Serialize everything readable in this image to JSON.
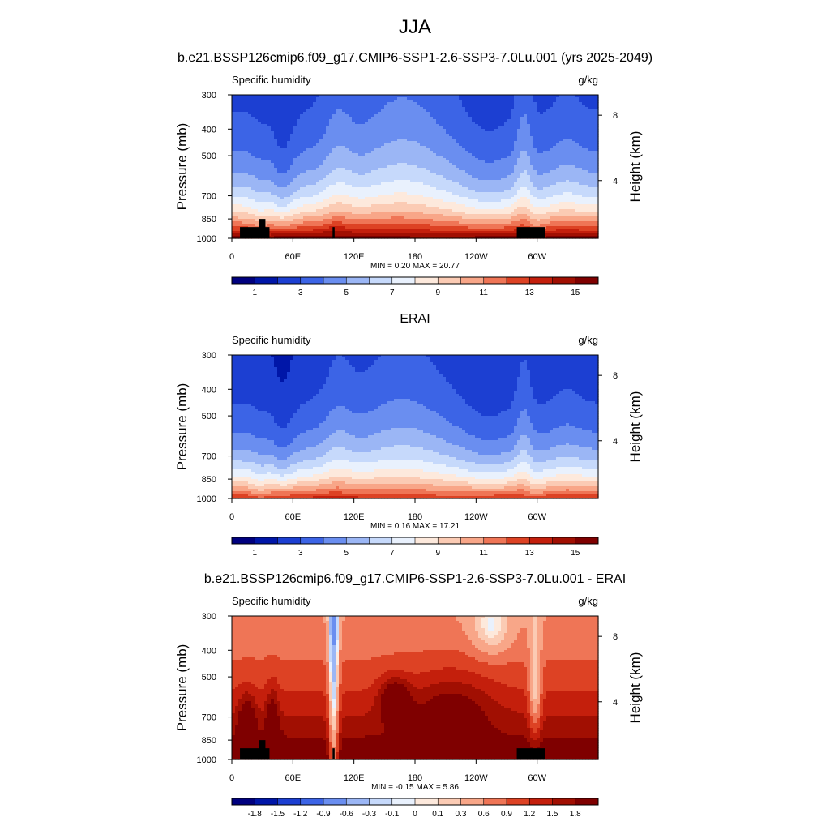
{
  "figure": {
    "season": "JJA",
    "panel_titles": [
      "b.e21.BSSP126cmip6.f09_g17.CMIP6-SSP1-2.6-SSP3-7.0Lu.001 (yrs 2025-2049)",
      "ERAI",
      "b.e21.BSSP126cmip6.f09_g17.CMIP6-SSP1-2.6-SSP3-7.0Lu.001 - ERAI"
    ]
  },
  "chart_data": [
    {
      "type": "heatmap",
      "title": "b.e21.BSSP126cmip6.f09_g17.CMIP6-SSP1-2.6-SSP3-7.0Lu.001 (yrs 2025-2049)",
      "left_label": "Specific humidity",
      "right_label": "g/kg",
      "ylabel": "Pressure (mb)",
      "y2label": "Height (km)",
      "xticks": [
        "0",
        "60E",
        "120E",
        "180",
        "120W",
        "60W"
      ],
      "xtick_lon": [
        0,
        60,
        120,
        180,
        240,
        300
      ],
      "xlim": [
        0,
        360
      ],
      "yticks": [
        300,
        400,
        500,
        700,
        850,
        1000
      ],
      "ylim": [
        1000,
        300
      ],
      "y2ticks": [
        8,
        4
      ],
      "y2tick_pressure": [
        356,
        616
      ],
      "stats": "MIN =   0.20  MAX =  20.77",
      "colorbar_labels": [
        "1",
        "3",
        "5",
        "7",
        "9",
        "11",
        "13",
        "15"
      ],
      "colorbar_levels": [
        0.5,
        1,
        2,
        3,
        4,
        5,
        6,
        7,
        8,
        9,
        10,
        11,
        12,
        13,
        14,
        15
      ],
      "colors": [
        "#00007f",
        "#0016a8",
        "#1c3fd2",
        "#3c64e6",
        "#6a8ef0",
        "#9bb6f5",
        "#c6d9fb",
        "#e9f1fd",
        "#fde9dc",
        "#fbcbb4",
        "#f8a688",
        "#ef7556",
        "#dd4224",
        "#c41f0c",
        "#a10f02",
        "#7f0000"
      ],
      "field": "model"
    },
    {
      "type": "heatmap",
      "title": "ERAI",
      "left_label": "Specific humidity",
      "right_label": "g/kg",
      "ylabel": "Pressure (mb)",
      "y2label": "Height (km)",
      "xticks": [
        "0",
        "60E",
        "120E",
        "180",
        "120W",
        "60W"
      ],
      "xtick_lon": [
        0,
        60,
        120,
        180,
        240,
        300
      ],
      "xlim": [
        0,
        360
      ],
      "yticks": [
        300,
        400,
        500,
        700,
        850,
        1000
      ],
      "ylim": [
        1000,
        300
      ],
      "y2ticks": [
        8,
        4
      ],
      "y2tick_pressure": [
        356,
        616
      ],
      "stats": "MIN =   0.16  MAX =  17.21",
      "colorbar_labels": [
        "1",
        "3",
        "5",
        "7",
        "9",
        "11",
        "13",
        "15"
      ],
      "colorbar_levels": [
        0.5,
        1,
        2,
        3,
        4,
        5,
        6,
        7,
        8,
        9,
        10,
        11,
        12,
        13,
        14,
        15
      ],
      "colors": [
        "#00007f",
        "#0016a8",
        "#1c3fd2",
        "#3c64e6",
        "#6a8ef0",
        "#9bb6f5",
        "#c6d9fb",
        "#e9f1fd",
        "#fde9dc",
        "#fbcbb4",
        "#f8a688",
        "#ef7556",
        "#dd4224",
        "#c41f0c",
        "#a10f02",
        "#7f0000"
      ],
      "field": "obs"
    },
    {
      "type": "heatmap",
      "title": "b.e21.BSSP126cmip6.f09_g17.CMIP6-SSP1-2.6-SSP3-7.0Lu.001 - ERAI",
      "left_label": "Specific humidity",
      "right_label": "g/kg",
      "ylabel": "Pressure (mb)",
      "y2label": "Height (km)",
      "xticks": [
        "0",
        "60E",
        "120E",
        "180",
        "120W",
        "60W"
      ],
      "xtick_lon": [
        0,
        60,
        120,
        180,
        240,
        300
      ],
      "xlim": [
        0,
        360
      ],
      "yticks": [
        300,
        400,
        500,
        700,
        850,
        1000
      ],
      "ylim": [
        1000,
        300
      ],
      "y2ticks": [
        8,
        4
      ],
      "y2tick_pressure": [
        356,
        616
      ],
      "stats": "MIN =  -0.15  MAX =   5.86",
      "colorbar_labels": [
        "-1.8",
        "-1.5",
        "-1.2",
        "-0.9",
        "-0.6",
        "-0.3",
        "-0.1",
        "0",
        "0.1",
        "0.3",
        "0.6",
        "0.9",
        "1.2",
        "1.5",
        "1.8"
      ],
      "colorbar_levels": [
        -1.8,
        -1.5,
        -1.2,
        -0.9,
        -0.6,
        -0.3,
        -0.1,
        0,
        0.1,
        0.3,
        0.6,
        0.9,
        1.2,
        1.5,
        1.8
      ],
      "colors": [
        "#00007f",
        "#0016a8",
        "#1c3fd2",
        "#3c64e6",
        "#6a8ef0",
        "#9bb6f5",
        "#c6d9fb",
        "#e9f1fd",
        "#fde9dc",
        "#fbcbb4",
        "#f8a688",
        "#ef7556",
        "#dd4224",
        "#c41f0c",
        "#a10f02",
        "#7f0000"
      ],
      "field": "diff"
    }
  ]
}
